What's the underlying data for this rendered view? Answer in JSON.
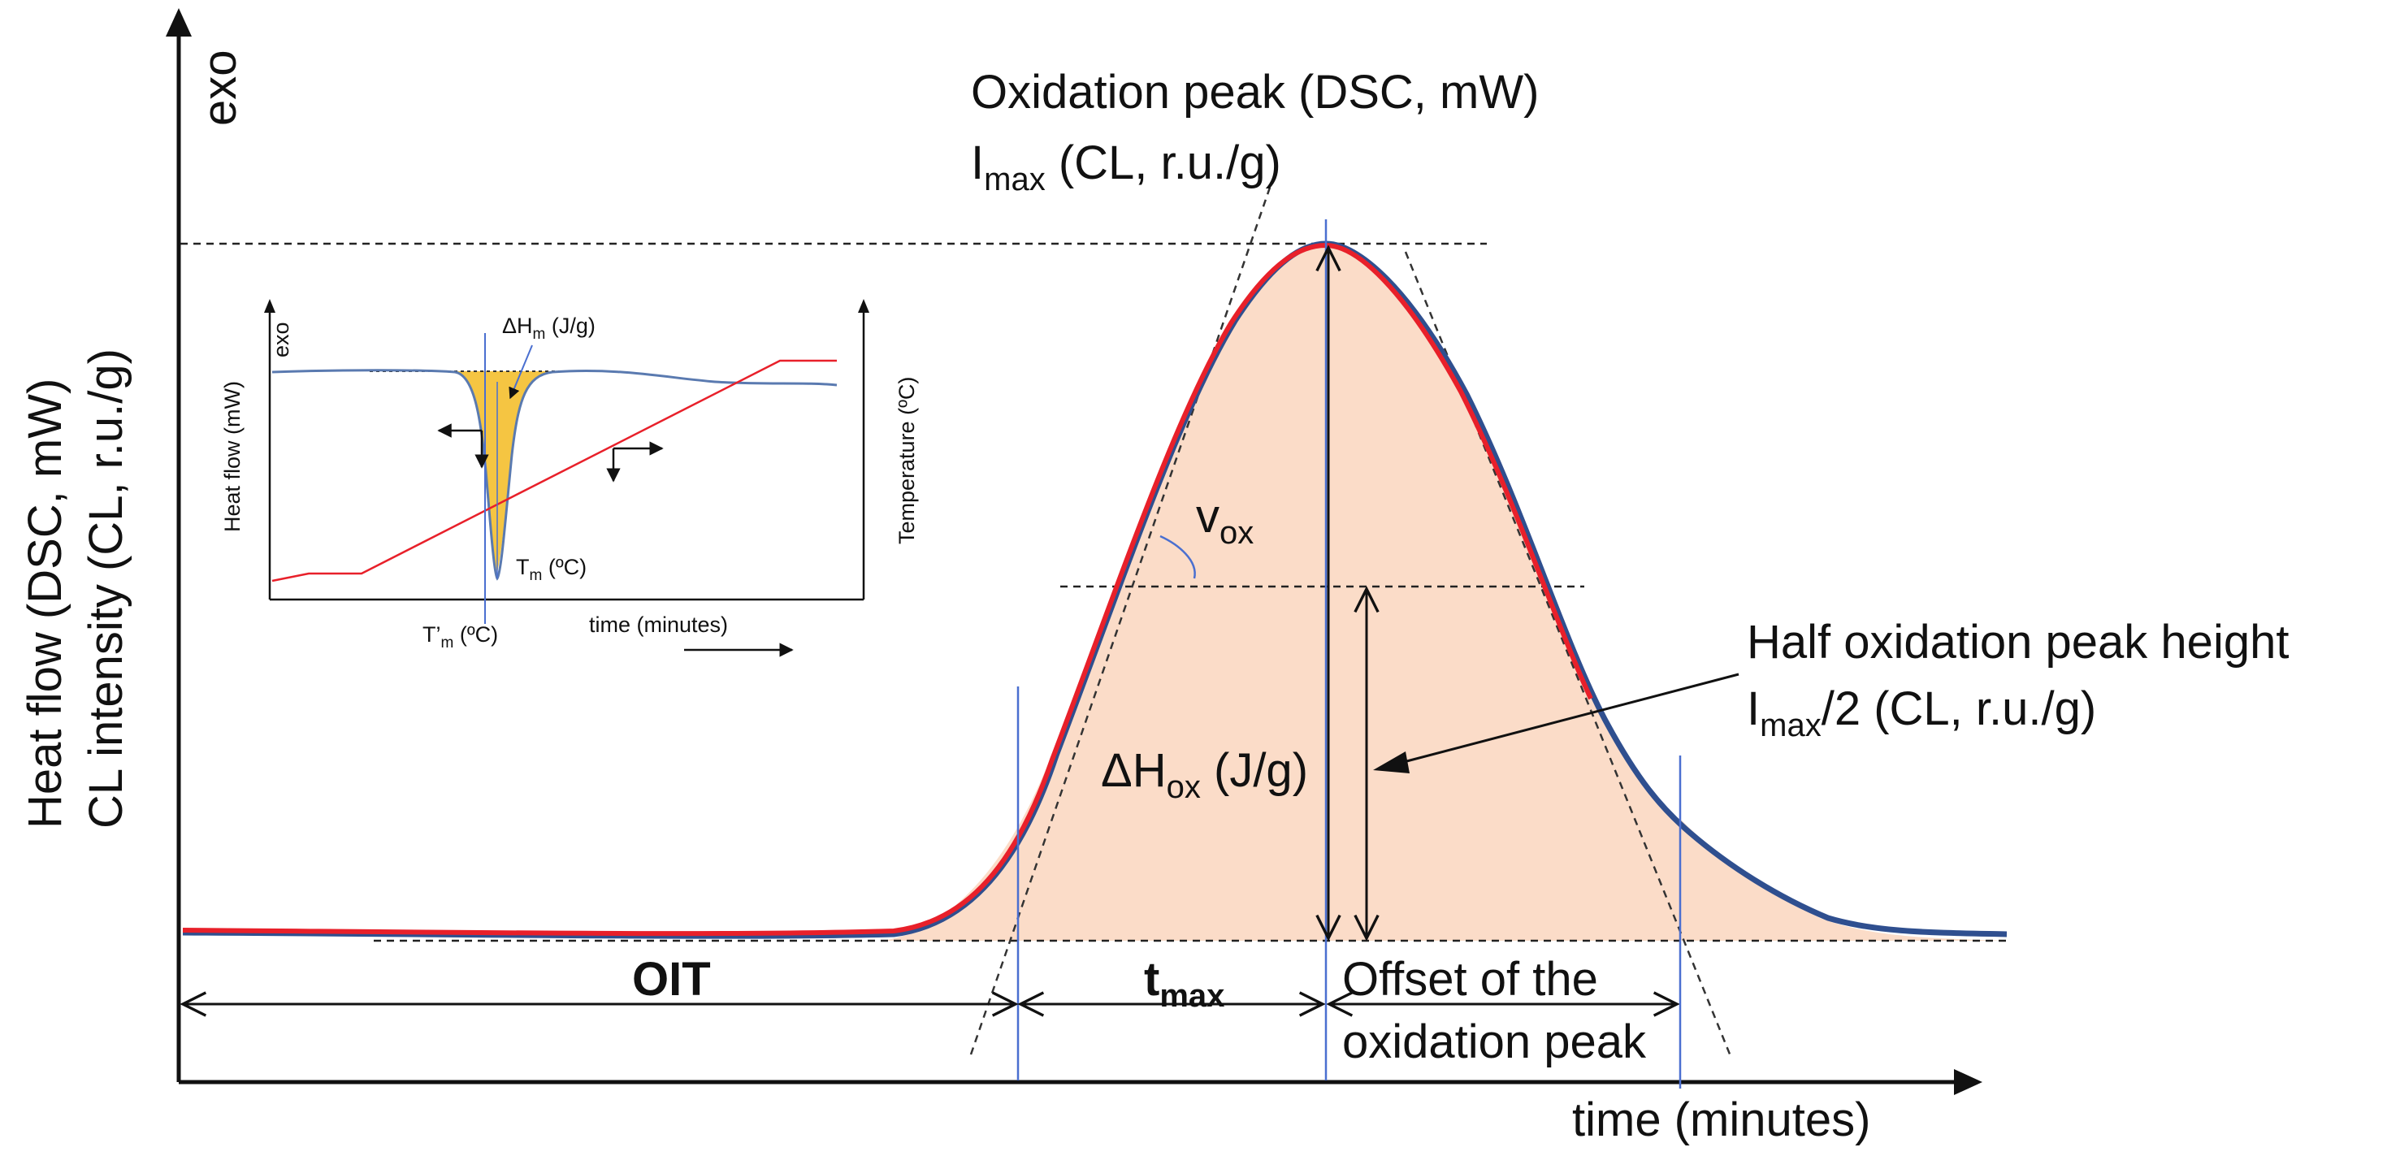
{
  "main": {
    "y_axis_exo": "exo",
    "y_axis_label_line1": "Heat flow (DSC, mW)",
    "y_axis_label_line2": "CL intensity (CL, r.u./g)",
    "x_axis_label": "time (minutes)",
    "oxidation_peak_line1": "Oxidation peak (DSC, mW)",
    "imax_symbol": "I",
    "imax_sub": "max",
    "imax_rest": " (CL, r.u./g)",
    "half_peak_line1": "Half oxidation peak height",
    "half_peak_sym": "I",
    "half_peak_sub": "max",
    "half_peak_rest": "/2  (CL, r.u./g)",
    "v_sym": "v",
    "v_sub": "ox",
    "dh_sym": "ΔH",
    "dh_sub": "ox",
    "dh_rest": " (J/g)",
    "oit_label": "OIT",
    "tmax_sym": "t",
    "tmax_sub": "max",
    "offset_line1": "Offset of the",
    "offset_line2": "oxidation peak"
  },
  "inset": {
    "exo": "exo",
    "heat_flow": "Heat flow (mW)",
    "temperature": "Temperature (ºC)",
    "dhm_sym": "ΔH",
    "dhm_sub": "m",
    "dhm_rest": " (J/g)",
    "tm_sym": "T",
    "tm_sub": "m",
    "tm_rest": " (ºC)",
    "tpm_sym": "T’",
    "tpm_sub": "m",
    "tpm_rest": " (ºC)",
    "time": "time (minutes)"
  },
  "colors": {
    "curve_red": "#e8202a",
    "curve_blue": "#2f4f8f",
    "peak_fill": "#fbdcc8",
    "melt_fill": "#f5c542",
    "guide_blue": "#4a6fd0"
  }
}
